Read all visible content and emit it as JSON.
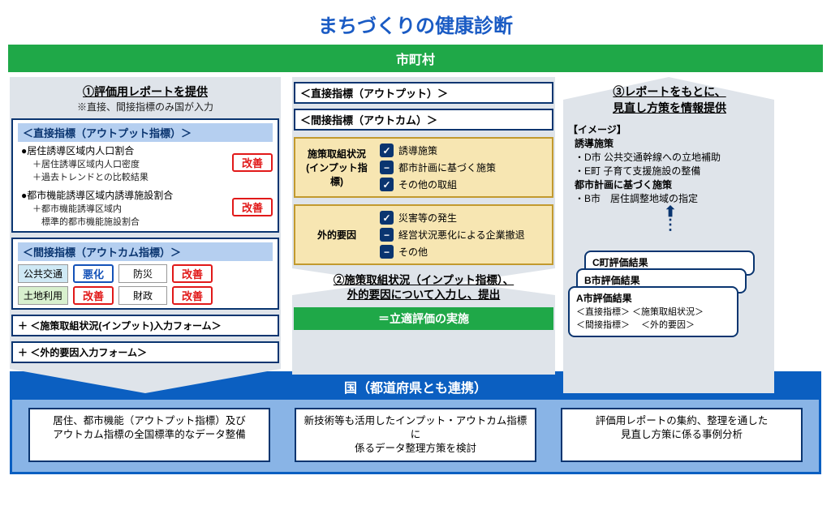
{
  "title": "まちづくりの健康診断",
  "municipality": "市町村",
  "left": {
    "step": "①評価用レポートを提供",
    "step_sub": "※直接、間接指標のみ国が入力",
    "direct_header": "＜直接指標（アウトプット指標）＞",
    "d1": "●居住誘導区域内人口割合",
    "d1a": "＋居住誘導区域内人口密度",
    "d1b": "＋過去トレンドとの比較結果",
    "d1_status": "改善",
    "d2": "●都市機能誘導区域内誘導施設割合",
    "d2a": "＋都市機能誘導区域内\n　標準的都市機能施設割合",
    "d2_status": "改善",
    "indirect_header": "＜間接指標（アウトカム指標）＞",
    "chips": {
      "transport": "公共交通",
      "transport_status": "悪化",
      "disaster": "防災",
      "disaster_status": "改善",
      "land": "土地利用",
      "land_status": "改善",
      "finance": "財政",
      "finance_status": "改善"
    },
    "form1": "＋ ＜施策取組状況(インプット)入力フォーム＞",
    "form2": "＋ ＜外的要因入力フォーム＞"
  },
  "mid": {
    "bar1": "＜直接指標（アウトプット）＞",
    "bar2": "＜間接指標（アウトカム）＞",
    "c1_label": "施策取組状況\n(インプット指標)",
    "c1_items": [
      {
        "icon": "chk",
        "text": "誘導施策"
      },
      {
        "icon": "dash",
        "text": "都市計画に基づく施策"
      },
      {
        "icon": "chk",
        "text": "その他の取組"
      }
    ],
    "c2_label": "外的要因",
    "c2_items": [
      {
        "icon": "chk",
        "text": "災害等の発生"
      },
      {
        "icon": "dash",
        "text": "経営状況悪化による企業撤退"
      },
      {
        "icon": "dash",
        "text": "その他"
      }
    ],
    "note": "②施策取組状況（インプット指標）、\n外的要因について入力し、提出",
    "green": "＝立適評価の実施"
  },
  "right": {
    "step": "③レポートをもとに、\n見直し方策を情報提供",
    "image_label": "【イメージ】",
    "h1": "誘導施策",
    "l1": "D市 公共交通幹線への立地補助",
    "l2": "E町 子育て支援施設の整備",
    "h2": "都市計画に基づく施策",
    "l3": "B市　居住調整地域の指定",
    "cards": {
      "c": "C町評価結果",
      "b": "B市評価結果",
      "a": "A市評価結果",
      "a1": "＜直接指標＞ ＜施策取組状況＞",
      "a2": "＜間接指標＞ 　＜外的要因＞"
    }
  },
  "nation": {
    "title": "国（都道府県とも連携）",
    "b1": "居住、都市機能（アウトプット指標）及び\nアウトカム指標の全国標準的なデータ整備",
    "b2": "新技術等も活用したインプット・アウトカム指標に\n係るデータ整理方策を検討",
    "b3": "評価用レポートの集約、整理を通した\n見直し方策に係る事例分析"
  },
  "colors": {
    "accent_blue": "#0b5fc1",
    "dark_blue": "#0a3570",
    "green": "#1fa848",
    "red": "#e11919",
    "cream": "#f7e6b2",
    "gray": "#dfe4ea"
  }
}
